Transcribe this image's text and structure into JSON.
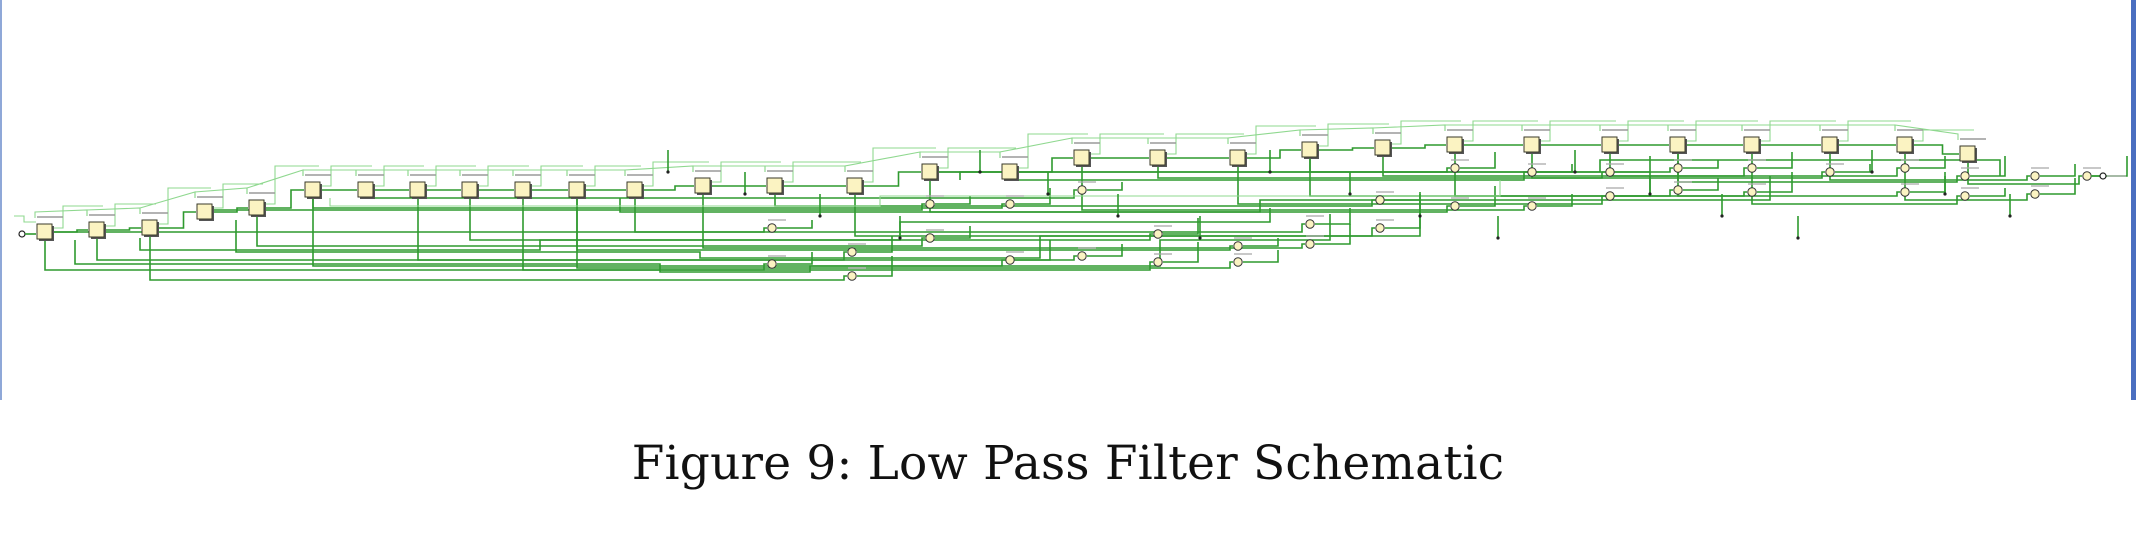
{
  "caption": "Figure 9: Low Pass Filter Schematic",
  "colors": {
    "wire_dark": "#2f9a2f",
    "wire_light": "#8fd88f",
    "register_fill": "#fbf3c2",
    "register_stroke": "#3a3a2a",
    "adder_fill": "#fbf3c2",
    "frame_left": "#8fa8d8",
    "frame_right": "#4a6fc0"
  },
  "icons": {
    "register": "register-block-icon",
    "adder": "adder-circle-icon",
    "port": "io-port-icon"
  }
}
